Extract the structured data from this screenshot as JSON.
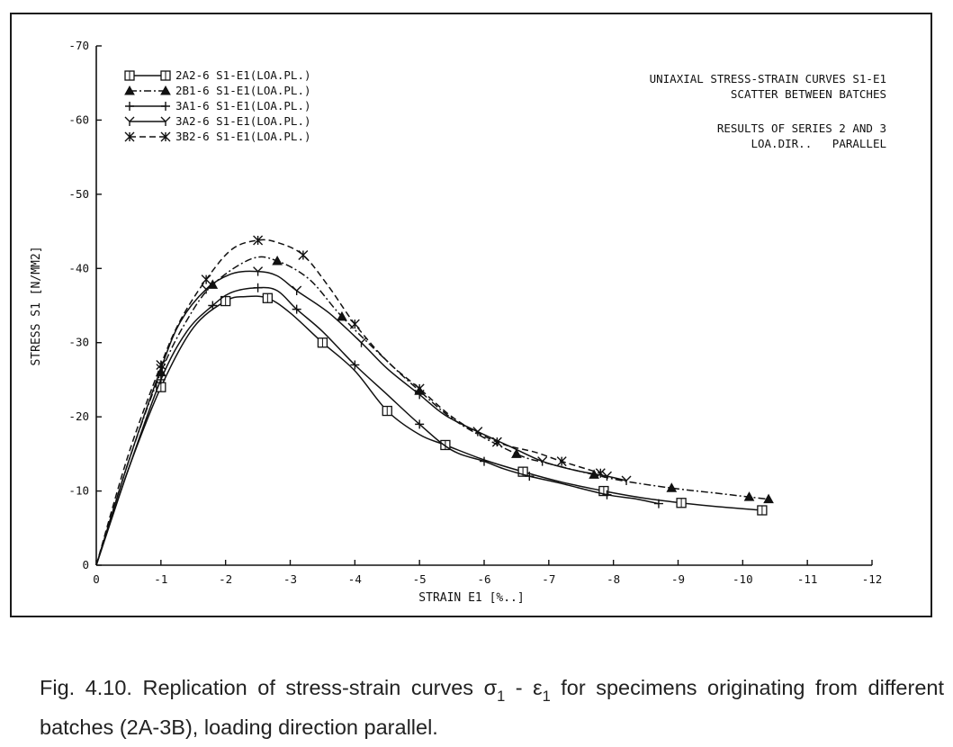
{
  "chart_data": {
    "type": "line",
    "title_lines": [
      "UNIAXIAL STRESS-STRAIN CURVES S1-E1",
      "SCATTER BETWEEN BATCHES"
    ],
    "subtitle_lines": [
      "RESULTS OF SERIES 2 AND 3",
      "LOA.DIR..   PARALLEL"
    ],
    "xlabel": "STRAIN E1 [%..]",
    "ylabel": "STRESS S1 [N/MM2]",
    "xlim": [
      0,
      -12
    ],
    "ylim": [
      0,
      -70
    ],
    "x_ticks": [
      "0",
      "-1",
      "-2",
      "-3",
      "-4",
      "-5",
      "-6",
      "-7",
      "-8",
      "-9",
      "-10",
      "-11",
      "-12"
    ],
    "y_ticks": [
      "0",
      "-10",
      "-20",
      "-30",
      "-40",
      "-50",
      "-60",
      "-70"
    ],
    "legend_position": "top-left",
    "series": [
      {
        "name": "2A2-6   S1-E1(LOA.PL.)",
        "marker": "square",
        "dash": "solid",
        "x": [
          0,
          -0.5,
          -1.0,
          -1.5,
          -2.0,
          -2.3,
          -2.65,
          -3.0,
          -3.5,
          -4.0,
          -4.5,
          -5.0,
          -5.4,
          -6.0,
          -6.6,
          -7.2,
          -7.85,
          -8.5,
          -9.05,
          -9.6,
          -10.3
        ],
        "y": [
          0,
          -13,
          -24,
          -32,
          -35.6,
          -36.2,
          -36,
          -34,
          -30,
          -26.2,
          -20.8,
          -17.6,
          -16.2,
          -14.2,
          -12.6,
          -11.2,
          -10,
          -9,
          -8.4,
          -7.9,
          -7.4
        ]
      },
      {
        "name": "2B1-6   S1-E1(LOA.PL.)",
        "marker": "triangle",
        "dash": "dashdot",
        "x": [
          0,
          -0.5,
          -1.0,
          -1.4,
          -1.8,
          -2.4,
          -2.8,
          -3.3,
          -3.8,
          -4.5,
          -5.0,
          -5.6,
          -6.5,
          -7.0,
          -7.7,
          -8.2,
          -8.9,
          -9.6,
          -10.1,
          -10.4
        ],
        "y": [
          0,
          -14,
          -26,
          -33,
          -37.8,
          -41.3,
          -41,
          -38.5,
          -33.5,
          -27.5,
          -23.5,
          -19.2,
          -15,
          -13.7,
          -12.2,
          -11.3,
          -10.4,
          -9.7,
          -9.2,
          -8.9
        ]
      },
      {
        "name": "3A1-6   S1-E1(LOA.PL.)",
        "marker": "plus",
        "dash": "solid",
        "x": [
          0,
          -0.5,
          -1.0,
          -1.4,
          -1.8,
          -2.1,
          -2.5,
          -2.8,
          -3.1,
          -3.5,
          -4.0,
          -4.5,
          -5.0,
          -5.5,
          -6.0,
          -6.3,
          -6.7,
          -7.2,
          -7.9,
          -8.3,
          -8.7
        ],
        "y": [
          0,
          -13,
          -25,
          -31.5,
          -35,
          -36.8,
          -37.4,
          -37,
          -34.5,
          -31.5,
          -27,
          -23,
          -19,
          -15.5,
          -14,
          -13,
          -12,
          -11,
          -9.5,
          -9,
          -8.3
        ]
      },
      {
        "name": "3A2-6   S1-E1(LOA.PL.)",
        "marker": "y",
        "dash": "solid",
        "x": [
          0,
          -0.5,
          -1.0,
          -1.3,
          -1.7,
          -2.1,
          -2.5,
          -2.8,
          -3.1,
          -3.6,
          -4.1,
          -4.5,
          -5.0,
          -5.4,
          -5.9,
          -6.4,
          -6.9,
          -7.4,
          -7.9,
          -8.2
        ],
        "y": [
          0,
          -14,
          -26.5,
          -32.8,
          -37.2,
          -39.3,
          -39.6,
          -39,
          -37,
          -34,
          -30,
          -26.5,
          -23,
          -20.2,
          -18,
          -16,
          -14,
          -12.8,
          -12,
          -11.4
        ]
      },
      {
        "name": "3B2-6   S1-E1(LOA.PL.)",
        "marker": "star",
        "dash": "dashed",
        "x": [
          0,
          -0.5,
          -1.0,
          -1.3,
          -1.7,
          -2.1,
          -2.5,
          -2.8,
          -3.2,
          -3.6,
          -4.0,
          -4.5,
          -5.0,
          -5.55,
          -6.2,
          -6.8,
          -7.2,
          -7.8
        ],
        "y": [
          0,
          -15,
          -27,
          -33,
          -38.5,
          -42.6,
          -43.8,
          -43.5,
          -41.8,
          -37.5,
          -32.5,
          -27.5,
          -23.8,
          -19.7,
          -16.6,
          -15.2,
          -14,
          -12.4
        ]
      }
    ]
  },
  "caption": {
    "text_before": "Fig. 4.10. Replication of stress-strain curves ",
    "sigma": "σ",
    "sigma_sub": "1",
    "dash": " - ",
    "eps": "ε",
    "eps_sub": "1",
    "text_after": " for specimens originating from different batches (2A-3B), loading direction parallel."
  }
}
